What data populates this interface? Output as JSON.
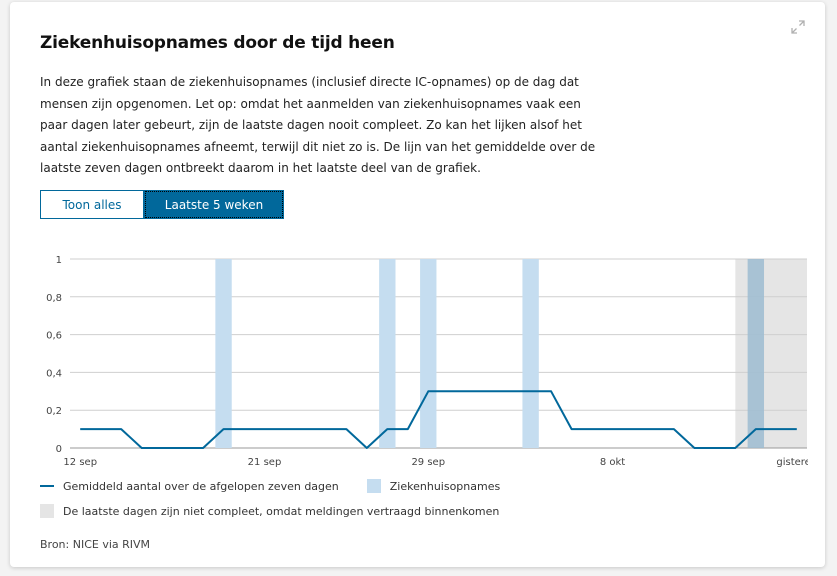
{
  "card": {
    "title": "Ziekenhuisopnames door de tijd heen",
    "description": "In deze grafiek staan de ziekenhuisopnames (inclusief directe IC-opnames) op de dag dat mensen zijn opgenomen. Let op: omdat het aanmelden van ziekenhuisopnames vaak een paar dagen later gebeurt, zijn de laatste dagen nooit compleet. Zo kan het lijken alsof het aantal ziekenhuisopnames afneemt, terwijl dit niet zo is. De lijn van het gemiddelde over de laatste zeven dagen ontbreekt daarom in het laatste deel van de grafiek.",
    "expand_icon": "expand-icon"
  },
  "toggle": {
    "all_label": "Toon alles",
    "five_weeks_label": "Laatste 5 weken",
    "selected": "Laatste 5 weken"
  },
  "legend": {
    "line_label": "Gemiddeld aantal over de afgelopen zeven dagen",
    "bar_label": "Ziekenhuisopnames",
    "incomplete_label": "De laatste dagen zijn niet compleet, omdat meldingen vertraagd binnenkomen"
  },
  "source": "Bron: NICE via RIVM",
  "colors": {
    "line": "#01689b",
    "bar": "#c5ddf0",
    "incomplete": "#e5e5e5",
    "grid": "#cfcfcf",
    "accent": "#01689b"
  },
  "chart_data": {
    "type": "bar",
    "x": [
      "12 sep",
      "13 sep",
      "14 sep",
      "15 sep",
      "16 sep",
      "17 sep",
      "18 sep",
      "19 sep",
      "20 sep",
      "21 sep",
      "22 sep",
      "23 sep",
      "24 sep",
      "25 sep",
      "26 sep",
      "27 sep",
      "28 sep",
      "29 sep",
      "30 sep",
      "1 okt",
      "2 okt",
      "3 okt",
      "4 okt",
      "5 okt",
      "6 okt",
      "7 okt",
      "8 okt",
      "9 okt",
      "10 okt",
      "11 okt",
      "12 okt",
      "13 okt",
      "14 okt",
      "15 okt",
      "16 okt",
      "gisteren"
    ],
    "x_tick_labels": [
      "12 sep",
      "21 sep",
      "29 sep",
      "8 okt",
      "gisteren"
    ],
    "x_tick_indices": [
      0,
      9,
      17,
      26,
      35
    ],
    "series": [
      {
        "type": "bar",
        "values": [
          0,
          0,
          0,
          0,
          0,
          0,
          0,
          1,
          0,
          0,
          0,
          0,
          0,
          0,
          0,
          1,
          0,
          1,
          0,
          0,
          0,
          0,
          1,
          0,
          0,
          0,
          0,
          0,
          0,
          0,
          0,
          0,
          0,
          1,
          0,
          0
        ]
      },
      {
        "type": "line",
        "values": [
          0.1,
          0.1,
          0.1,
          0,
          0,
          0,
          0,
          0.1,
          0.1,
          0.1,
          0.1,
          0.1,
          0.1,
          0.1,
          0,
          0.1,
          0.1,
          0.3,
          0.3,
          0.3,
          0.3,
          0.3,
          0.3,
          0.3,
          0.1,
          0.1,
          0.1,
          0.1,
          0.1,
          0.1,
          0,
          0,
          0,
          0.1,
          0.1,
          0.1
        ]
      }
    ],
    "incomplete_from_index": 32,
    "yticks": [
      "0",
      "0,2",
      "0,4",
      "0,6",
      "0,8",
      "1"
    ],
    "ylim": [
      0,
      1
    ],
    "grid": true,
    "legend_position": "bottom"
  }
}
